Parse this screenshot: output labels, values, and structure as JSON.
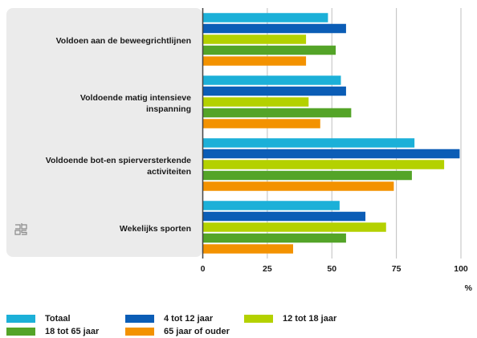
{
  "chart_data": {
    "type": "bar",
    "orientation": "horizontal",
    "categories": [
      [
        "Voldoen aan de beweegrichtlijnen"
      ],
      [
        "Voldoende matig intensieve",
        "inspanning"
      ],
      [
        "Voldoende bot-en spierversterkende",
        "activiteiten"
      ],
      [
        "Wekelijks sporten"
      ]
    ],
    "series": [
      {
        "name": "Totaal",
        "color": "#1cb0d8",
        "values": [
          48.5,
          53.5,
          82,
          53
        ]
      },
      {
        "name": "4 tot 12 jaar",
        "color": "#0b5db6",
        "values": [
          55.5,
          55.5,
          99.5,
          63
        ]
      },
      {
        "name": "12 tot 18 jaar",
        "color": "#b4d100",
        "values": [
          40,
          41,
          93.5,
          71
        ]
      },
      {
        "name": "18 tot 65 jaar",
        "color": "#54a428",
        "values": [
          51.5,
          57.5,
          81,
          55.5
        ]
      },
      {
        "name": "65 jaar of ouder",
        "color": "#f39200",
        "values": [
          40,
          45.5,
          74,
          35
        ]
      }
    ],
    "x_ticks": [
      "0",
      "25",
      "50",
      "75",
      "100"
    ],
    "xlim": [
      0,
      100
    ],
    "xunit": "%",
    "grid": "vertical",
    "legend_position": "bottom"
  },
  "colors": {
    "panel_background": "#ebebeb",
    "gridline": "#bfbfbf",
    "axis": "#444444"
  },
  "logo_icon": "cbs-logo-icon"
}
